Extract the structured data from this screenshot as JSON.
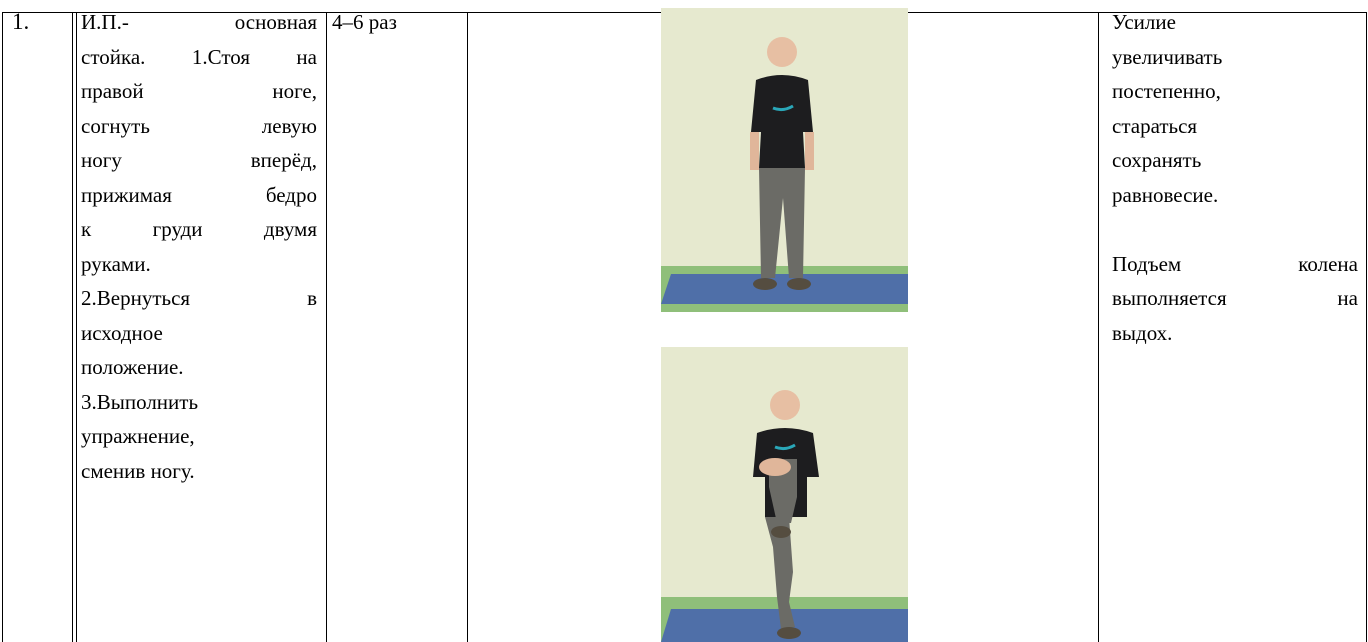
{
  "table": {
    "rows": [
      {
        "number": "1.",
        "description": [
          "И.П.- основная",
          "стойка. 1.Стоя на",
          "правой ноге,",
          "согнуть левую",
          "ногу вперёд,",
          "прижимая бедро",
          "к груди двумя",
          "руками.",
          "2.Вернуться в",
          "исходное",
          "положение.",
          "3.Выполнить",
          "упражнение,",
          "сменив ногу."
        ],
        "repetitions": "4–6 раз",
        "notes": [
          "Усилие",
          "увеличивать",
          "постепенно,",
          "стараться",
          "сохранять",
          "равновесие.",
          "Подъем колена",
          "выполняется на",
          "выдох."
        ]
      }
    ]
  }
}
